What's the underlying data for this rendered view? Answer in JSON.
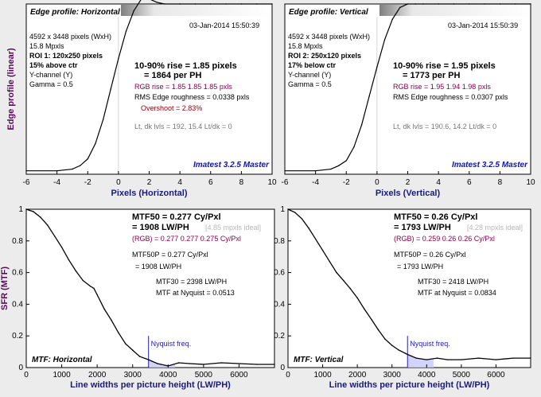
{
  "chart_data": [
    {
      "type": "line",
      "title": "Edge profile: Horizontal",
      "timestamp": "03-Jan-2014 15:50:39",
      "xlabel": "Pixels (Horizontal)",
      "ylabel": "Edge profile (linear)",
      "xlim": [
        -6,
        10
      ],
      "ylim": [
        0,
        1
      ],
      "xticks": [
        -6,
        -4,
        -2,
        0,
        2,
        4,
        6,
        8,
        10
      ],
      "lines": [
        {
          "text": "4592 x 3448 pixels (WxH)",
          "style": "normal"
        },
        {
          "text": "15.8 Mpxls",
          "style": "normal"
        },
        {
          "text": "ROI 1:  120x250 pixels",
          "style": "bold"
        },
        {
          "text": "15% above ctr",
          "style": "bold"
        },
        {
          "text": "Y-channel  (Y)",
          "style": "normal"
        },
        {
          "text": "Gamma = 0.5",
          "style": "normal"
        }
      ],
      "stats": {
        "rise": "10-90% rise = 1.85 pixels",
        "per_ph": "= 1864 per PH",
        "rgb": "RGB rise = 1.85  1.85  1.85 pxls",
        "rms": "RMS Edge roughness = 0.0338 pxls",
        "overshoot": "Overshoot = 2.83%",
        "levels": "Lt, dk lvls = 192, 15.4   Lt/dk = 0"
      },
      "watermark": "Imatest 3.2.5 Master",
      "series": [
        {
          "x": [
            -6,
            -4,
            -3,
            -2.5,
            -2,
            -1.5,
            -1,
            -0.5,
            0,
            0.5,
            1,
            1.5,
            2,
            2.5,
            3,
            4,
            5,
            6,
            7,
            8,
            9,
            10
          ],
          "y": [
            0.02,
            0.02,
            0.03,
            0.05,
            0.09,
            0.18,
            0.32,
            0.5,
            0.68,
            0.84,
            0.96,
            1.03,
            1.03,
            1.01,
            1.0,
            1.0,
            1.0,
            1.0,
            1.0,
            1.0,
            1.0,
            1.0
          ]
        }
      ]
    },
    {
      "type": "line",
      "title": "Edge profile: Vertical",
      "timestamp": "03-Jan-2014 15:50:39",
      "xlabel": "Pixels (Vertical)",
      "ylabel": "",
      "xlim": [
        -6,
        10
      ],
      "ylim": [
        0,
        1
      ],
      "xticks": [
        -6,
        -4,
        -2,
        0,
        2,
        4,
        6,
        8,
        10
      ],
      "lines": [
        {
          "text": "4592 x 3448 pixels (WxH)",
          "style": "normal"
        },
        {
          "text": "15.8 Mpxls",
          "style": "normal"
        },
        {
          "text": "ROI 2:  250x120 pixels",
          "style": "bold"
        },
        {
          "text": "17% below ctr",
          "style": "bold"
        },
        {
          "text": "Y-channel  (Y)",
          "style": "normal"
        },
        {
          "text": "Gamma = 0.5",
          "style": "normal"
        }
      ],
      "stats": {
        "rise": "10-90% rise = 1.95 pixels",
        "per_ph": "= 1773 per PH",
        "rgb": "RGB rise = 1.95  1.94  1.98 pxls",
        "rms": "RMS Edge roughness = 0.0307 pxls",
        "overshoot": "",
        "levels": "Lt, dk lvls = 190.6, 14.2   Lt/dk = 0"
      },
      "watermark": "Imatest 3.2.5 Master",
      "series": [
        {
          "x": [
            -6,
            -4,
            -3,
            -2.5,
            -2,
            -1.5,
            -1,
            -0.5,
            0,
            0.5,
            1,
            1.5,
            2,
            2.5,
            3,
            4,
            5,
            6,
            7,
            8,
            9,
            10
          ],
          "y": [
            0.02,
            0.02,
            0.03,
            0.05,
            0.08,
            0.16,
            0.29,
            0.46,
            0.63,
            0.79,
            0.91,
            0.98,
            1.0,
            1.0,
            1.0,
            1.0,
            1.0,
            1.0,
            1.0,
            1.0,
            1.0,
            1.0
          ]
        }
      ]
    },
    {
      "type": "line",
      "title": "MTF: Horizontal",
      "xlabel": "Line widths per picture height (LW/PH)",
      "ylabel": "SFR (MTF)",
      "xlim": [
        0,
        7000
      ],
      "ylim": [
        0,
        1
      ],
      "xticks": [
        0,
        1000,
        2000,
        3000,
        4000,
        5000,
        6000
      ],
      "yticks": [
        0,
        0.2,
        0.4,
        0.6,
        0.8,
        1
      ],
      "nyquist": 3448,
      "nyquist_label": "Nyquist freq.",
      "stats": {
        "mtf50": "MTF50 = 0.277 Cy/Pxl",
        "mtf50_lw": "= 1908 LW/PH",
        "ideal": "[4.85 mpxls ideal]",
        "rgb": "(RGB) = 0.277  0.277  0.275 Cy/Pxl",
        "mtf50p": "MTF50P = 0.277 Cy/Pxl",
        "mtf50p_lw": "= 1908 LW/PH",
        "mtf30": "MTF30 = 2398 LW/PH",
        "nyq": "MTF at Nyquist = 0.0513"
      },
      "series": [
        {
          "x": [
            0,
            200,
            400,
            600,
            800,
            1000,
            1200,
            1400,
            1600,
            1800,
            1908,
            2000,
            2200,
            2398,
            2600,
            2800,
            3000,
            3200,
            3448,
            3700,
            4000,
            4300,
            4600,
            5000,
            5500,
            6000,
            6500,
            7000
          ],
          "y": [
            1.0,
            0.985,
            0.95,
            0.9,
            0.83,
            0.76,
            0.68,
            0.61,
            0.55,
            0.515,
            0.5,
            0.46,
            0.37,
            0.3,
            0.22,
            0.15,
            0.11,
            0.07,
            0.05,
            0.025,
            0.01,
            0.03,
            0.025,
            0.02,
            0.03,
            0.025,
            0.02,
            0.02
          ]
        }
      ]
    },
    {
      "type": "line",
      "title": "MTF: Vertical",
      "xlabel": "Line widths per picture height (LW/PH)",
      "ylabel": "",
      "xlim": [
        0,
        7000
      ],
      "ylim": [
        0,
        1
      ],
      "xticks": [
        0,
        1000,
        2000,
        3000,
        4000,
        5000,
        6000
      ],
      "yticks": [
        0,
        0.2,
        0.4,
        0.6,
        0.8,
        1
      ],
      "nyquist": 3448,
      "nyquist_label": "Nyquist freq.",
      "stats": {
        "mtf50": "MTF50 = 0.26 Cy/Pxl",
        "mtf50_lw": "= 1793 LW/PH",
        "ideal": "[4.28 mpxls ideal]",
        "rgb": "(RGB) = 0.259  0.26  0.26 Cy/Pxl",
        "mtf50p": "MTF50P = 0.26 Cy/Pxl",
        "mtf50p_lw": "= 1793 LW/PH",
        "mtf30": "MTF30 = 2418 LW/PH",
        "nyq": "MTF at Nyquist = 0.0834"
      },
      "series": [
        {
          "x": [
            0,
            200,
            400,
            600,
            800,
            1000,
            1200,
            1400,
            1600,
            1793,
            2000,
            2200,
            2418,
            2600,
            2800,
            3000,
            3200,
            3448,
            3700,
            4000,
            4300,
            4600,
            5000,
            5500,
            6000,
            6500,
            7000
          ],
          "y": [
            1.0,
            0.98,
            0.94,
            0.88,
            0.81,
            0.74,
            0.67,
            0.6,
            0.55,
            0.5,
            0.44,
            0.37,
            0.3,
            0.24,
            0.18,
            0.14,
            0.11,
            0.083,
            0.06,
            0.05,
            0.06,
            0.05,
            0.05,
            0.06,
            0.05,
            0.06,
            0.06
          ]
        }
      ]
    }
  ],
  "colors": {
    "curve": "#000000",
    "nyquist": "#2020c0",
    "nyquist_fill": "#c8c8ff",
    "plot_bg": "#ffffff",
    "grid": "#bbbbbb"
  }
}
